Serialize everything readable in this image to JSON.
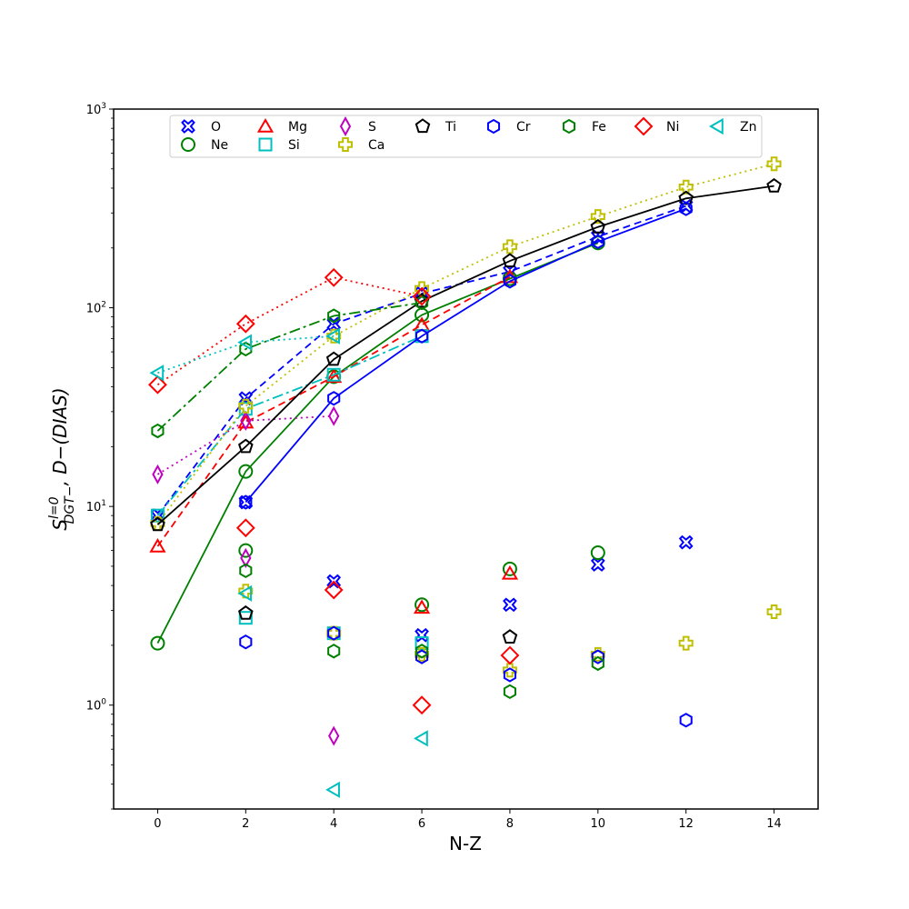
{
  "chart_data": {
    "type": "line",
    "xlabel": "N-Z",
    "ylabel_main": "S^{l=0}_{DGT−}",
    "ylabel_super": "l=0",
    "ylabel_sub": "DGT−",
    "ylabel_rest": ",    D−(DIAS)",
    "xlim": [
      -1,
      15
    ],
    "ylim": [
      0.3,
      1000
    ],
    "yscale": "log",
    "xticks": [
      0,
      2,
      4,
      6,
      8,
      10,
      12,
      14
    ],
    "xtick_labels": [
      "0",
      "2",
      "4",
      "6",
      "8",
      "10",
      "12",
      "14"
    ],
    "yticks": [
      1,
      10,
      100,
      1000
    ],
    "ytick_labels": [
      "10⁰",
      "10¹",
      "10²",
      "10³"
    ],
    "ytick_base": "10",
    "ytick_exps": [
      "0",
      "1",
      "2",
      "3"
    ],
    "grid": false,
    "legend_position": "top",
    "series": [
      {
        "name": "O",
        "color": "#0000ff",
        "marker": "X",
        "dash": "8,5",
        "upper_x": [
          0,
          2,
          4,
          6,
          8,
          10,
          12
        ],
        "upper_y": [
          9,
          35,
          83,
          118,
          152,
          228,
          325
        ],
        "lower_x": [
          2,
          4,
          6,
          8,
          10,
          12
        ],
        "lower_y": [
          10.5,
          4.2,
          2.25,
          3.2,
          5.1,
          6.6
        ]
      },
      {
        "name": "Ne",
        "color": "#008000",
        "marker": "o",
        "dash": "",
        "upper_x": [
          0,
          2,
          4,
          6,
          8,
          10
        ],
        "upper_y": [
          2.05,
          15,
          45,
          92,
          140,
          212
        ],
        "lower_x": [
          2,
          6,
          8,
          10
        ],
        "lower_y": [
          6,
          3.2,
          4.85,
          5.85
        ]
      },
      {
        "name": "Mg",
        "color": "#ff0000",
        "marker": "triangle",
        "dash": "8,5",
        "upper_x": [
          0,
          2,
          4,
          6,
          8
        ],
        "upper_y": [
          6.3,
          26.5,
          45,
          82,
          143
        ],
        "lower_x": [
          6,
          8
        ],
        "lower_y": [
          3.1,
          4.6
        ]
      },
      {
        "name": "Si",
        "color": "#00bfbf",
        "marker": "square",
        "dash": "12,4,3,4",
        "upper_x": [
          0,
          2,
          4,
          6
        ],
        "upper_y": [
          9,
          31,
          46,
          72
        ],
        "lower_x": [
          2,
          4,
          6
        ],
        "lower_y": [
          2.75,
          2.3,
          2.05
        ]
      },
      {
        "name": "S",
        "color": "#bf00bf",
        "marker": "thin_diamond",
        "dash": "2,4",
        "upper_x": [
          0,
          2,
          4
        ],
        "upper_y": [
          14.5,
          27,
          28.5
        ],
        "lower_x": [
          2,
          4
        ],
        "lower_y": [
          5.5,
          0.7
        ]
      },
      {
        "name": "Ca",
        "color": "#bfbf00",
        "marker": "P",
        "dash": "2,4",
        "upper_x": [
          0,
          2,
          4,
          6,
          8,
          10,
          12,
          14
        ],
        "upper_y": [
          8.2,
          32,
          72,
          125,
          203,
          288,
          405,
          530
        ],
        "lower_x": [
          2,
          4,
          6,
          8,
          10,
          12,
          14
        ],
        "lower_y": [
          3.75,
          2.3,
          1.8,
          1.5,
          1.8,
          2.05,
          2.95
        ]
      },
      {
        "name": "Ti",
        "color": "#000000",
        "marker": "pentagon",
        "dash": "",
        "upper_x": [
          0,
          2,
          4,
          6,
          8,
          10,
          12,
          14
        ],
        "upper_y": [
          8.1,
          20,
          55,
          108,
          172,
          255,
          355,
          410
        ],
        "lower_x": [
          2,
          8
        ],
        "lower_y": [
          2.9,
          2.2
        ]
      },
      {
        "name": "Cr",
        "color": "#0000ff",
        "marker": "hexagon",
        "dash": "",
        "upper_x": [
          2,
          4,
          6,
          8,
          10,
          12
        ],
        "upper_y": [
          10.5,
          35,
          72,
          136,
          215,
          315
        ],
        "lower_x": [
          2,
          4,
          6,
          8,
          10,
          12
        ],
        "lower_y": [
          2.08,
          2.3,
          1.75,
          1.42,
          1.75,
          0.84
        ]
      },
      {
        "name": "Fe",
        "color": "#008000",
        "marker": "hexagon",
        "dash": "12,4,3,4",
        "upper_x": [
          0,
          2,
          4,
          6
        ],
        "upper_y": [
          24,
          62,
          91,
          106
        ],
        "lower_x": [
          2,
          4,
          6,
          8,
          10
        ],
        "lower_y": [
          4.75,
          1.87,
          1.87,
          1.17,
          1.62
        ]
      },
      {
        "name": "Ni",
        "color": "#ff0000",
        "marker": "diamond",
        "dash": "2,4",
        "upper_x": [
          0,
          2,
          4,
          6
        ],
        "upper_y": [
          41,
          83,
          142,
          114
        ],
        "lower_x": [
          2,
          4,
          6,
          8
        ],
        "lower_y": [
          7.8,
          3.8,
          1.0,
          1.78
        ]
      },
      {
        "name": "Zn",
        "color": "#00bfbf",
        "marker": "triangle_left",
        "dash": "2,4",
        "upper_x": [
          0,
          2,
          4
        ],
        "upper_y": [
          47,
          67,
          72
        ],
        "lower_x": [
          2,
          4,
          6
        ],
        "lower_y": [
          3.65,
          0.375,
          0.68
        ]
      }
    ]
  }
}
